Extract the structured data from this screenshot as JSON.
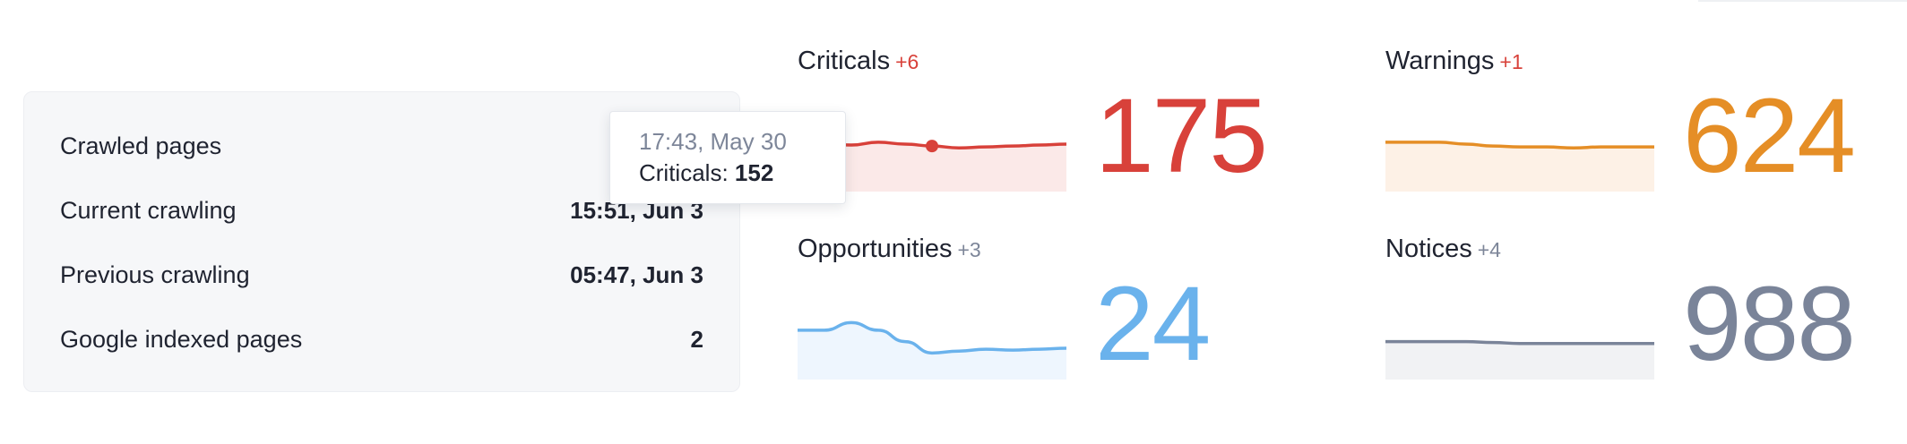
{
  "stats": {
    "rows": [
      {
        "label": "Crawled pages",
        "value": ""
      },
      {
        "label": "Current crawling",
        "value": "15:51, Jun 3"
      },
      {
        "label": "Previous crawling",
        "value": "05:47, Jun 3"
      },
      {
        "label": "Google indexed pages",
        "value": "2"
      }
    ]
  },
  "tooltip": {
    "date": "17:43, May 30",
    "label": "Criticals:",
    "value": "152"
  },
  "metrics": {
    "criticals": {
      "title": "Criticals",
      "delta": "+6",
      "value": "175",
      "color": "#d8413a",
      "fill": "#fbe9e8",
      "series": [
        48,
        50,
        49,
        52,
        50,
        48,
        46,
        47,
        48,
        49,
        50
      ],
      "highlight_index": 5
    },
    "warnings": {
      "title": "Warnings",
      "delta": "+1",
      "value": "624",
      "color": "#e58e26",
      "fill": "#fdf1e6",
      "series": [
        52,
        52,
        52,
        50,
        48,
        47,
        47,
        46,
        47,
        47,
        47
      ]
    },
    "opportunities": {
      "title": "Opportunities",
      "delta": "+3",
      "value": "24",
      "color": "#6ab2ec",
      "fill": "#eef6fe",
      "series": [
        52,
        52,
        60,
        52,
        40,
        28,
        30,
        32,
        31,
        32,
        33
      ]
    },
    "notices": {
      "title": "Notices",
      "delta": "+4",
      "value": "988",
      "color": "#7a8499",
      "fill": "#f1f2f4",
      "series": [
        40,
        40,
        40,
        40,
        39,
        38,
        38,
        38,
        38,
        38,
        38
      ]
    }
  }
}
